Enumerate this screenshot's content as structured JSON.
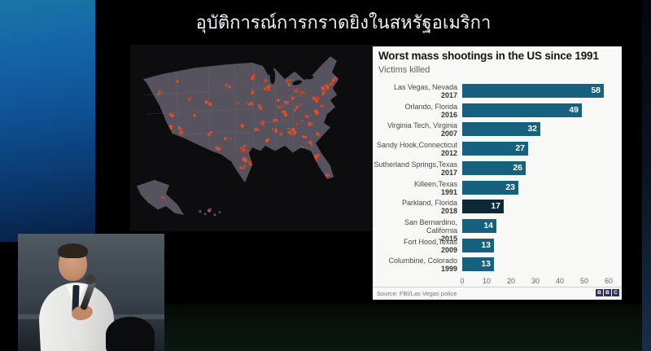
{
  "slide_title": "อุบัติการณ์การกราดยิงในสหรัฐอเมริกา",
  "chart_data": {
    "type": "bar",
    "orientation": "horizontal",
    "title": "Worst mass shootings in the US since 1991",
    "subtitle": "Victims killed",
    "source": "Source: FBI/Las Vegas police",
    "brand": "BBC",
    "xlim": [
      0,
      60
    ],
    "x_ticks": [
      0,
      10,
      20,
      30,
      40,
      50,
      60
    ],
    "bar_color": "#16617e",
    "highlight_color": "#0d2836",
    "rows": [
      {
        "label": "Las Vegas, Nevada",
        "year": "2017",
        "value": 58,
        "highlight": false
      },
      {
        "label": "Orlando, Florida",
        "year": "2016",
        "value": 49,
        "highlight": false
      },
      {
        "label": "Virginia Tech, Virginia",
        "year": "2007",
        "value": 32,
        "highlight": false
      },
      {
        "label": "Sandy Hook,Connecticut",
        "year": "2012",
        "value": 27,
        "highlight": false
      },
      {
        "label": "Sutherland Springs,Texas",
        "year": "2017",
        "value": 26,
        "highlight": false
      },
      {
        "label": "Killeen,Texas",
        "year": "1991",
        "value": 23,
        "highlight": false
      },
      {
        "label": "Parkland, Florida",
        "year": "2018",
        "value": 17,
        "highlight": true
      },
      {
        "label": "San Bernardino, California",
        "year": "2015",
        "value": 14,
        "highlight": false
      },
      {
        "label": "Fort Hood,Texas",
        "year": "2009",
        "value": 13,
        "highlight": false
      },
      {
        "label": "Columbine, Colorado",
        "year": "1999",
        "value": 13,
        "highlight": false
      }
    ]
  },
  "map": {
    "subject": "us-mass-shooting-locations-dot-density",
    "land_color": "#56525e",
    "dot_color": "#e0502c",
    "dot_color_alt": "#b5411f",
    "background": "#0d0d10",
    "clusters": [
      [
        20,
        26,
        6,
        4
      ],
      [
        19,
        37,
        4,
        3
      ],
      [
        28,
        62,
        8,
        5
      ],
      [
        46,
        83,
        11,
        6
      ],
      [
        50,
        92,
        5,
        3
      ],
      [
        62,
        88,
        6,
        4
      ],
      [
        50,
        70,
        3,
        3
      ],
      [
        72,
        52,
        3,
        3
      ],
      [
        96,
        58,
        5,
        3
      ],
      [
        98,
        92,
        4,
        3
      ],
      [
        108,
        110,
        3,
        2
      ],
      [
        140,
        110,
        8,
        5
      ],
      [
        148,
        126,
        8,
        4
      ],
      [
        138,
        131,
        5,
        3
      ],
      [
        141,
        122,
        4,
        2
      ],
      [
        140,
        84,
        4,
        3
      ],
      [
        146,
        58,
        4,
        3
      ],
      [
        160,
        62,
        5,
        3
      ],
      [
        150,
        28,
        5,
        3
      ],
      [
        168,
        40,
        10,
        4
      ],
      [
        166,
        32,
        4,
        2
      ],
      [
        194,
        34,
        7,
        4
      ],
      [
        204,
        42,
        5,
        3
      ],
      [
        212,
        46,
        4,
        3
      ],
      [
        198,
        50,
        4,
        3
      ],
      [
        182,
        52,
        4,
        3
      ],
      [
        192,
        56,
        3,
        2
      ],
      [
        184,
        62,
        3,
        2
      ],
      [
        164,
        80,
        5,
        3
      ],
      [
        178,
        76,
        5,
        3
      ],
      [
        186,
        92,
        4,
        3
      ],
      [
        198,
        90,
        9,
        5
      ],
      [
        168,
        112,
        5,
        3
      ],
      [
        168,
        100,
        3,
        2
      ],
      [
        156,
        88,
        3,
        2
      ],
      [
        240,
        40,
        10,
        4
      ],
      [
        236,
        46,
        6,
        3
      ],
      [
        228,
        54,
        7,
        3
      ],
      [
        230,
        50,
        4,
        2
      ],
      [
        252,
        30,
        5,
        3
      ],
      [
        246,
        36,
        3,
        2
      ],
      [
        218,
        72,
        5,
        3
      ],
      [
        228,
        68,
        5,
        3
      ],
      [
        222,
        82,
        4,
        3
      ],
      [
        214,
        96,
        3,
        2
      ],
      [
        222,
        104,
        4,
        3
      ],
      [
        230,
        118,
        5,
        3
      ],
      [
        226,
        124,
        5,
        3
      ],
      [
        244,
        140,
        6,
        3
      ],
      [
        236,
        60,
        4,
        2
      ],
      [
        60,
        30,
        2,
        4
      ],
      [
        120,
        40,
        3,
        5
      ],
      [
        130,
        60,
        3,
        5
      ],
      [
        150,
        45,
        3,
        4
      ],
      [
        176,
        90,
        4,
        4
      ],
      [
        206,
        62,
        4,
        4
      ],
      [
        208,
        80,
        4,
        4
      ],
      [
        190,
        70,
        4,
        4
      ],
      [
        230,
        92,
        3,
        3
      ],
      [
        160,
        120,
        3,
        3
      ],
      [
        120,
        95,
        3,
        4
      ],
      [
        80,
        70,
        2,
        4
      ],
      [
        36,
        46,
        3,
        3
      ],
      [
        210,
        110,
        3,
        3
      ],
      [
        40,
        166,
        2,
        2
      ],
      [
        96,
        180,
        2,
        2
      ]
    ]
  }
}
